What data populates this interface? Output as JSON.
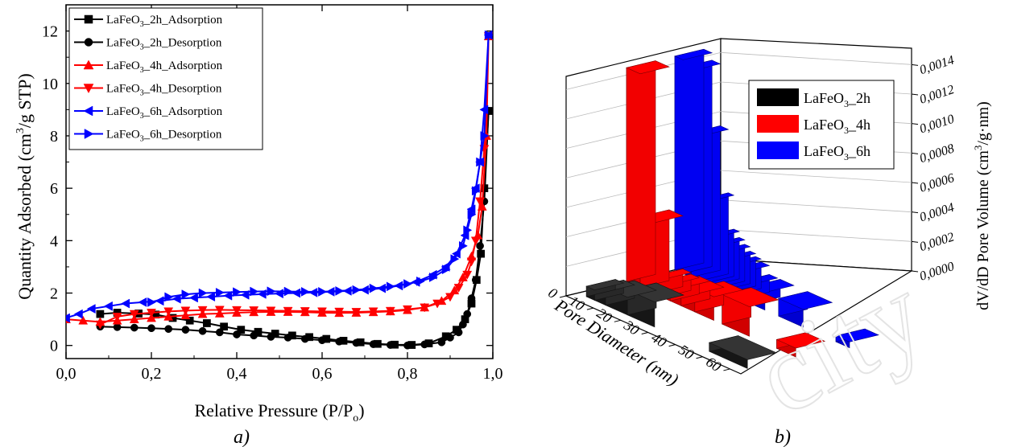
{
  "panel_a": {
    "caption": "a)",
    "xlabel": "Relative Pressure (P/P",
    "xlabel_sub": "o",
    "xlabel_end": ")",
    "ylabel_pre": "Quantity Adsorbed (cm",
    "ylabel_sup": "3",
    "ylabel_post": "/g STP)"
  },
  "panel_b": {
    "caption": "b)",
    "xlabel": "Pore Diameter (nm)",
    "zlabel_pre": "dV/dD Pore Volume (cm",
    "zlabel_sup": "3",
    "zlabel_post": "/g·nm)",
    "watermark": "city"
  },
  "colors": {
    "black": "#000000",
    "red": "#ff0000",
    "blue": "#0000ff"
  },
  "chart_data": [
    {
      "type": "line",
      "panel": "a",
      "xlim": [
        0,
        1.0
      ],
      "ylim": [
        -0.5,
        13
      ],
      "xticks": [
        "0,0",
        "0,2",
        "0,4",
        "0,6",
        "0,8",
        "1,0"
      ],
      "xtick_values": [
        0,
        0.2,
        0.4,
        0.6,
        0.8,
        1.0
      ],
      "yticks": [
        "0",
        "2",
        "4",
        "6",
        "8",
        "10",
        "12"
      ],
      "ytick_values": [
        0,
        2,
        4,
        6,
        8,
        10,
        12
      ],
      "legend_position": "top-left",
      "series": [
        {
          "name_main": "LaFeO",
          "name_sub": "3",
          "name_tail": "_2h_Adsorption",
          "color": "black",
          "marker": "square",
          "x": [
            0.08,
            0.12,
            0.17,
            0.21,
            0.25,
            0.29,
            0.33,
            0.37,
            0.41,
            0.45,
            0.49,
            0.53,
            0.57,
            0.61,
            0.65,
            0.69,
            0.73,
            0.77,
            0.81,
            0.85,
            0.89,
            0.915,
            0.935,
            0.95,
            0.962,
            0.972,
            0.98,
            0.99
          ],
          "y": [
            1.2,
            1.25,
            1.22,
            1.18,
            1.05,
            0.95,
            0.85,
            0.72,
            0.6,
            0.52,
            0.45,
            0.38,
            0.32,
            0.25,
            0.18,
            0.12,
            0.06,
            0.03,
            0.02,
            0.08,
            0.35,
            0.6,
            1.0,
            1.6,
            2.5,
            3.5,
            6.0,
            8.95
          ]
        },
        {
          "name_main": "LaFeO",
          "name_sub": "3",
          "name_tail": "_2h_Desorption",
          "color": "black",
          "marker": "circle",
          "x": [
            0.99,
            0.98,
            0.97,
            0.96,
            0.95,
            0.94,
            0.93,
            0.92,
            0.9,
            0.88,
            0.84,
            0.8,
            0.76,
            0.72,
            0.68,
            0.64,
            0.6,
            0.56,
            0.52,
            0.48,
            0.44,
            0.4,
            0.36,
            0.32,
            0.28,
            0.24,
            0.2,
            0.16,
            0.12,
            0.08
          ],
          "y": [
            8.95,
            5.5,
            3.8,
            2.5,
            1.8,
            1.2,
            0.8,
            0.5,
            0.3,
            0.12,
            0.04,
            0.0,
            0.02,
            0.05,
            0.1,
            0.15,
            0.2,
            0.25,
            0.3,
            0.33,
            0.38,
            0.42,
            0.5,
            0.55,
            0.6,
            0.63,
            0.66,
            0.68,
            0.7,
            0.72
          ]
        },
        {
          "name_main": "LaFeO",
          "name_sub": "3",
          "name_tail": "_4h_Adsorption",
          "color": "red",
          "marker": "triangle-up",
          "x": [
            0.0,
            0.04,
            0.08,
            0.12,
            0.16,
            0.2,
            0.24,
            0.28,
            0.32,
            0.36,
            0.4,
            0.44,
            0.48,
            0.52,
            0.56,
            0.6,
            0.64,
            0.68,
            0.72,
            0.76,
            0.8,
            0.84,
            0.88,
            0.91,
            0.93,
            0.95,
            0.965,
            0.975,
            0.985,
            0.99
          ],
          "y": [
            1.0,
            0.95,
            0.9,
            0.95,
            1.0,
            1.05,
            1.1,
            1.15,
            1.2,
            1.22,
            1.25,
            1.27,
            1.28,
            1.28,
            1.27,
            1.25,
            1.24,
            1.25,
            1.27,
            1.3,
            1.35,
            1.45,
            1.7,
            2.1,
            2.6,
            3.4,
            4.2,
            5.3,
            8.0,
            11.8
          ]
        },
        {
          "name_main": "LaFeO",
          "name_sub": "3",
          "name_tail": "_4h_Desorption",
          "color": "red",
          "marker": "triangle-down",
          "x": [
            0.99,
            0.98,
            0.97,
            0.96,
            0.95,
            0.94,
            0.92,
            0.9,
            0.87,
            0.84,
            0.8,
            0.76,
            0.72,
            0.68,
            0.64,
            0.6,
            0.56,
            0.52,
            0.48,
            0.44,
            0.4,
            0.36,
            0.32,
            0.28,
            0.24,
            0.2,
            0.16,
            0.12,
            0.08
          ],
          "y": [
            11.8,
            7.5,
            5.5,
            4.0,
            3.2,
            2.7,
            2.2,
            1.85,
            1.6,
            1.45,
            1.38,
            1.32,
            1.3,
            1.28,
            1.29,
            1.3,
            1.31,
            1.32,
            1.33,
            1.34,
            1.35,
            1.36,
            1.35,
            1.33,
            1.3,
            1.25,
            1.2,
            1.1,
            0.8
          ]
        },
        {
          "name_main": "LaFeO",
          "name_sub": "3",
          "name_tail": "_6h_Adsorption",
          "color": "blue",
          "marker": "triangle-left",
          "x": [
            0.0,
            0.03,
            0.06,
            0.1,
            0.14,
            0.18,
            0.22,
            0.26,
            0.3,
            0.34,
            0.38,
            0.42,
            0.46,
            0.5,
            0.54,
            0.58,
            0.62,
            0.66,
            0.7,
            0.74,
            0.78,
            0.82,
            0.86,
            0.89,
            0.915,
            0.935,
            0.95,
            0.96,
            0.97,
            0.98,
            0.99
          ],
          "y": [
            1.05,
            1.2,
            1.4,
            1.5,
            1.6,
            1.65,
            1.7,
            1.78,
            1.82,
            1.86,
            1.9,
            1.93,
            1.96,
            1.98,
            2.0,
            2.02,
            2.05,
            2.08,
            2.12,
            2.18,
            2.28,
            2.42,
            2.7,
            3.0,
            3.5,
            4.2,
            5.2,
            6.0,
            7.0,
            9.0,
            11.85
          ]
        },
        {
          "name_main": "LaFeO",
          "name_sub": "3",
          "name_tail": "_6h_Desorption",
          "color": "blue",
          "marker": "triangle-right",
          "x": [
            0.99,
            0.98,
            0.97,
            0.96,
            0.95,
            0.94,
            0.93,
            0.91,
            0.89,
            0.86,
            0.83,
            0.8,
            0.76,
            0.72,
            0.68,
            0.64,
            0.6,
            0.56,
            0.52,
            0.48,
            0.44,
            0.4,
            0.36,
            0.32,
            0.28,
            0.24,
            0.2
          ],
          "y": [
            11.85,
            8.0,
            7.0,
            5.9,
            5.0,
            4.4,
            3.8,
            3.3,
            2.9,
            2.6,
            2.45,
            2.35,
            2.25,
            2.18,
            2.12,
            2.08,
            2.05,
            2.05,
            2.06,
            2.07,
            2.06,
            2.04,
            2.02,
            2.0,
            1.95,
            1.85,
            1.65
          ]
        }
      ]
    },
    {
      "type": "bar3d",
      "panel": "b",
      "xlabel": "Pore Diameter (nm)",
      "xticks": [
        "0",
        "10",
        "20",
        "30",
        "40",
        "50",
        "60"
      ],
      "xtick_values": [
        0,
        10,
        20,
        30,
        40,
        50,
        60
      ],
      "zticks": [
        "0,0000",
        "0,0002",
        "0,0004",
        "0,0006",
        "0,0008",
        "0,0010",
        "0,0012",
        "0,0014"
      ],
      "ztick_values": [
        0,
        0.0002,
        0.0004,
        0.0006,
        0.0008,
        0.001,
        0.0012,
        0.0014
      ],
      "zlim": [
        0,
        0.0015
      ],
      "legend_position": "top-right",
      "series": [
        {
          "name_main": "LaFeO",
          "name_sub": "3",
          "name_tail": "_2h",
          "color": "black",
          "row": 0,
          "bars": [
            [
              3,
              6,
              7e-05
            ],
            [
              6,
              10,
              9e-05
            ],
            [
              10,
              18,
              0.00012
            ],
            [
              18,
              28,
              0.00017
            ],
            [
              48,
              62,
              6e-05
            ]
          ]
        },
        {
          "name_main": "LaFeO",
          "name_sub": "3",
          "name_tail": "_4h",
          "color": "red",
          "row": 1,
          "bars": [
            [
              0,
              5,
              0.00145
            ],
            [
              5,
              10,
              0.00048
            ],
            [
              10,
              13,
              0.00012
            ],
            [
              13,
              16,
              0.00011
            ],
            [
              16,
              20,
              0.00012
            ],
            [
              20,
              25,
              0.00012
            ],
            [
              25,
              32,
              0.00016
            ],
            [
              35,
              45,
              0.0002
            ],
            [
              55,
              62,
              6e-05
            ]
          ]
        },
        {
          "name_main": "LaFeO",
          "name_sub": "3",
          "name_tail": "_6h",
          "color": "blue",
          "row": 2,
          "bars": [
            [
              0,
              3,
              0.00145
            ],
            [
              3,
              6,
              0.0014
            ],
            [
              6,
              9,
              0.00098
            ],
            [
              9,
              11,
              0.00055
            ],
            [
              11,
              13,
              0.00032
            ],
            [
              13,
              15,
              0.00028
            ],
            [
              15,
              17,
              0.00025
            ],
            [
              17,
              19,
              0.00022
            ],
            [
              19,
              21,
              0.0002
            ],
            [
              21,
              24,
              0.00018
            ],
            [
              24,
              27,
              0.00012
            ],
            [
              28,
              33,
              0.00012
            ],
            [
              38,
              47,
              0.00012
            ],
            [
              59,
              64,
              4e-05
            ]
          ]
        }
      ]
    }
  ]
}
